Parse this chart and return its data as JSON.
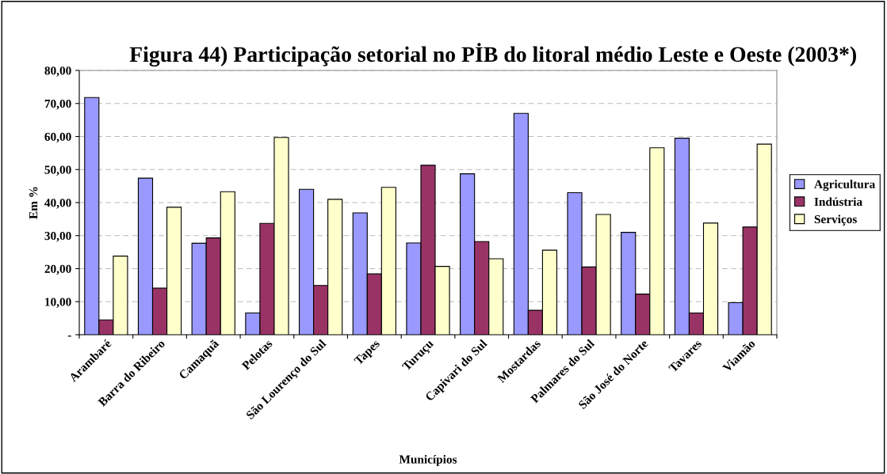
{
  "chart_data": {
    "type": "bar",
    "title": "Figura 44) Participação setorial no PİB do litoral médio Leste e Oeste (2003*)",
    "xlabel": "Municípios",
    "ylabel": "Em %",
    "categories": [
      "Arambaré",
      "Barra do Ribeiro",
      "Camaquã",
      "Pelotas",
      "São Lourenço do Sul",
      "Tapes",
      "Turuçu",
      "Capivari do Sul",
      "Mostardas",
      "Palmares do Sul",
      "São José do Norte",
      "Tavares",
      "Viamão"
    ],
    "series": [
      {
        "name": "Agricultura",
        "color": "#9999ff",
        "values": [
          71.8,
          47.4,
          27.7,
          6.6,
          44.0,
          36.9,
          27.8,
          48.7,
          67.0,
          43.0,
          31.0,
          59.5,
          9.7
        ]
      },
      {
        "name": "Indústria",
        "color": "#993366",
        "values": [
          4.5,
          14.1,
          29.3,
          33.7,
          14.9,
          18.4,
          51.3,
          28.2,
          7.4,
          20.5,
          12.3,
          6.6,
          32.6
        ]
      },
      {
        "name": "Serviços",
        "color": "#ffffcc",
        "values": [
          23.8,
          38.6,
          43.3,
          59.7,
          41.0,
          44.6,
          20.7,
          23.0,
          25.6,
          36.4,
          56.6,
          33.8,
          57.7
        ]
      }
    ],
    "ylim": [
      0,
      80
    ],
    "yticks": [
      {
        "value": 0,
        "label": "-"
      },
      {
        "value": 10,
        "label": "10,00"
      },
      {
        "value": 20,
        "label": "20,00"
      },
      {
        "value": 30,
        "label": "30,00"
      },
      {
        "value": 40,
        "label": "40,00"
      },
      {
        "value": 50,
        "label": "50,00"
      },
      {
        "value": 60,
        "label": "60,00"
      },
      {
        "value": 70,
        "label": "70,00"
      },
      {
        "value": 80,
        "label": "80,00"
      }
    ],
    "grid": "y",
    "legend": "right"
  }
}
